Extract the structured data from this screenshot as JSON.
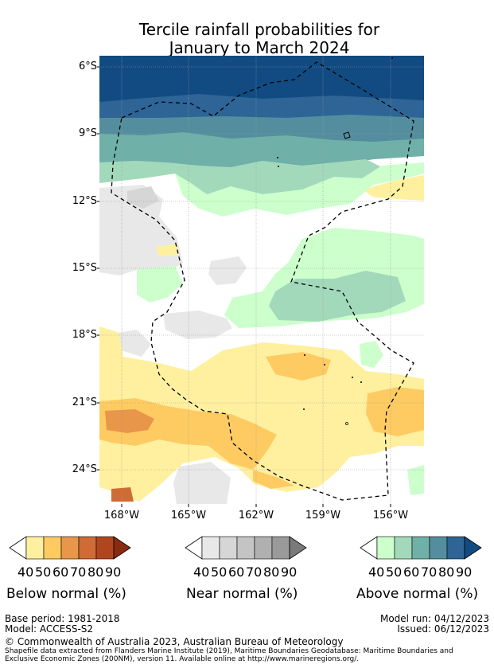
{
  "header": {
    "title_line1": "Tercile rainfall probabilities for",
    "title_line2": "January to March 2024"
  },
  "map": {
    "lat_labels": [
      "6°S",
      "9°S",
      "12°S",
      "15°S",
      "18°S",
      "21°S",
      "24°S"
    ],
    "lon_labels": [
      "168°W",
      "165°W",
      "162°W",
      "159°W",
      "156°W"
    ],
    "boundary_style": "dashed-black"
  },
  "legend": {
    "values": [
      "40",
      "50",
      "60",
      "70",
      "80",
      "90"
    ],
    "below": {
      "title": "Below normal (%)",
      "colors": [
        "#ffffff",
        "#fff0a0",
        "#fecb62",
        "#e8964a",
        "#cf6b35",
        "#b0461f",
        "#8a2a10"
      ]
    },
    "near": {
      "title": "Near normal (%)",
      "colors": [
        "#ffffff",
        "#e8e8e8",
        "#d6d6d6",
        "#c4c4c4",
        "#b0b0b0",
        "#9a9a9a",
        "#7a7a7a"
      ]
    },
    "above": {
      "title": "Above normal (%)",
      "colors": [
        "#ffffff",
        "#ccffcc",
        "#a3d9bb",
        "#6fb0a8",
        "#548e9e",
        "#2e6496",
        "#124b82"
      ]
    }
  },
  "footer": {
    "base_period": "Base period: 1981-2018",
    "model": "Model: ACCESS-S2",
    "model_run": "Model run: 04/12/2023",
    "issued": "Issued: 06/12/2023",
    "copyright": "© Commonwealth of Australia 2023, Australian Bureau of Meteorology",
    "source_line1": "Shapefile data extracted from Flanders Marine Institute (2019), Maritime Boundaries Geodatabase: Maritime Boundaries and",
    "source_line2": "Exclusive Economic Zones (200NM), version 11. Available online at http://www.marineregions.org/."
  }
}
